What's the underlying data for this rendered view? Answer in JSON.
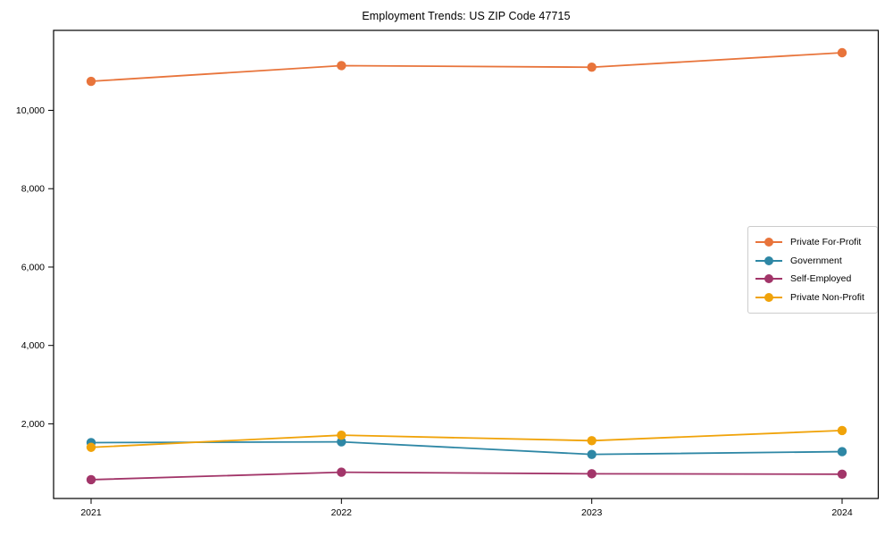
{
  "chart_data": {
    "type": "line",
    "title": "Employment Trends: US ZIP Code 47715",
    "xlabel": "",
    "ylabel": "",
    "x": [
      2021,
      2022,
      2023,
      2024
    ],
    "xtick_labels": [
      "2021",
      "2022",
      "2023",
      "2024"
    ],
    "yticks": [
      2000,
      4000,
      6000,
      8000,
      10000
    ],
    "ytick_labels": [
      "2,000",
      "4,000",
      "6,000",
      "8,000",
      "10,000"
    ],
    "ylim": [
      95,
      12040
    ],
    "grid": false,
    "legend_position": "center-right",
    "marker": "circle",
    "series": [
      {
        "name": "Private For-Profit",
        "color": "#e8743b",
        "values": [
          10740,
          11140,
          11100,
          11470
        ]
      },
      {
        "name": "Government",
        "color": "#2e87a5",
        "values": [
          1520,
          1540,
          1220,
          1290
        ]
      },
      {
        "name": "Self-Employed",
        "color": "#a23569",
        "values": [
          575,
          765,
          725,
          715
        ]
      },
      {
        "name": "Private Non-Profit",
        "color": "#f0a30a",
        "values": [
          1400,
          1710,
          1570,
          1830
        ]
      }
    ]
  }
}
